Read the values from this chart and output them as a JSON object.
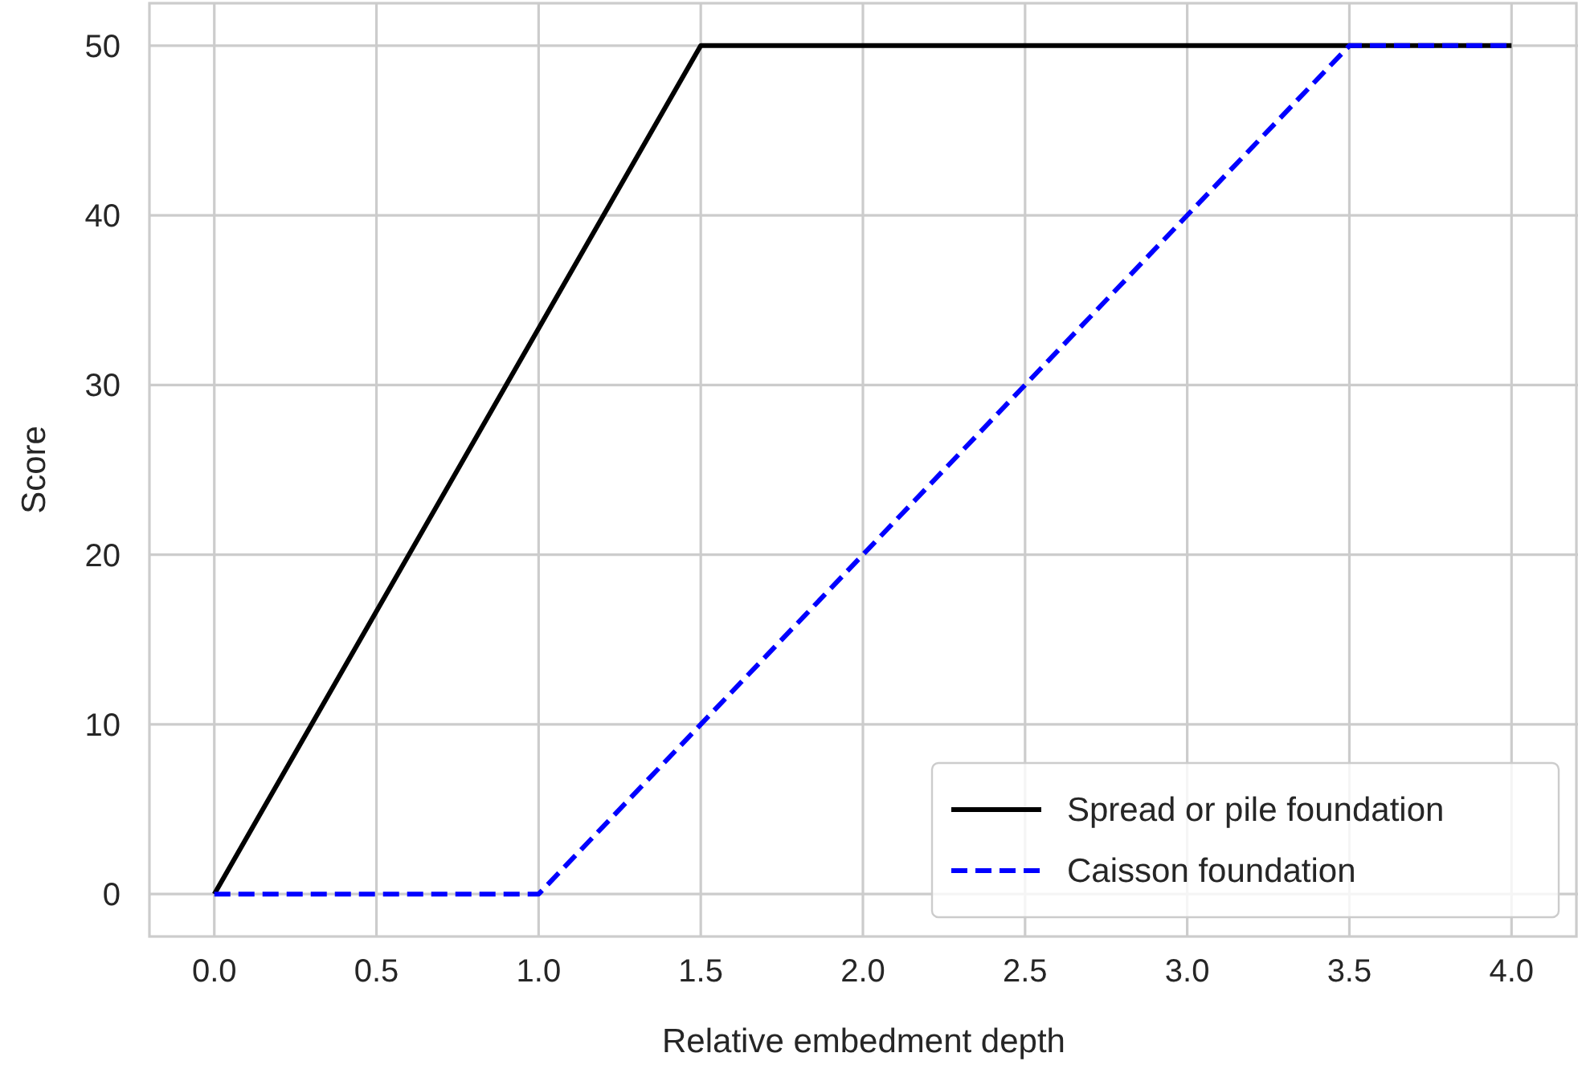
{
  "chart_data": {
    "type": "line",
    "xlabel": "Relative embedment depth",
    "ylabel": "Score",
    "xlim": [
      -0.2,
      4.2
    ],
    "ylim": [
      -2.5,
      52.5
    ],
    "xticks": [
      {
        "value": 0,
        "label": "0.0"
      },
      {
        "value": 0.5,
        "label": "0.5"
      },
      {
        "value": 1,
        "label": "1.0"
      },
      {
        "value": 1.5,
        "label": "1.5"
      },
      {
        "value": 2,
        "label": "2.0"
      },
      {
        "value": 2.5,
        "label": "2.5"
      },
      {
        "value": 3,
        "label": "3.0"
      },
      {
        "value": 3.5,
        "label": "3.5"
      },
      {
        "value": 4,
        "label": "4.0"
      }
    ],
    "yticks": [
      0,
      10,
      20,
      30,
      40,
      50
    ],
    "grid": true,
    "legend": "bottom right",
    "marker": "none",
    "series": [
      {
        "name": "Spread or pile foundation",
        "color": "#000000",
        "line_style": "solid",
        "x": [
          0,
          1.5,
          4
        ],
        "values": [
          0,
          50,
          50
        ]
      },
      {
        "name": "Caisson foundation",
        "color": "#0000ff",
        "line_style": "dashed",
        "x": [
          0,
          1,
          3.5,
          4
        ],
        "values": [
          0,
          0,
          50,
          50
        ]
      }
    ]
  }
}
